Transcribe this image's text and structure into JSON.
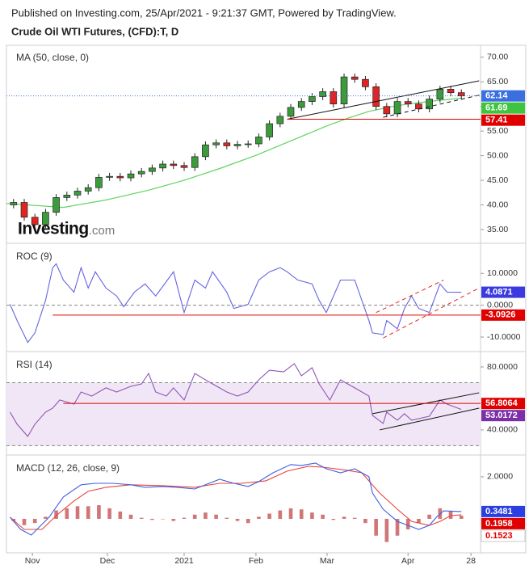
{
  "header": {
    "line1": "Published on Investing.com, 25/Apr/2021 - 9:21:37 GMT, Powered by TradingView.",
    "line2": "Crude Oil WTI Futures, (CFD):T, D"
  },
  "chart_data": [
    {
      "type": "candlestick",
      "title": "MA (50, close, 0)",
      "logo": {
        "text": "Investing",
        "suffix": ".com"
      },
      "xlim": [
        0,
        133.4
      ],
      "x": [
        2,
        5,
        8,
        11,
        14,
        17,
        20,
        23,
        26,
        29,
        32,
        35,
        38,
        41,
        44,
        47,
        50,
        53,
        56,
        59,
        62,
        65,
        68,
        71,
        74,
        77,
        80,
        83,
        86,
        89,
        92,
        95,
        98,
        101,
        104,
        107,
        110,
        113,
        116,
        119,
        122,
        125,
        128
      ],
      "open": [
        40.0,
        40.5,
        37.5,
        36.0,
        38.5,
        41.5,
        42.0,
        42.8,
        43.5,
        45.6,
        45.8,
        45.5,
        46.3,
        46.8,
        47.5,
        48.3,
        48.0,
        47.6,
        49.8,
        52.2,
        52.6,
        52.0,
        52.3,
        52.4,
        53.8,
        56.5,
        58.0,
        59.8,
        61.0,
        62.0,
        63.0,
        60.5,
        66.0,
        65.5,
        64.0,
        60.0,
        58.5,
        61.0,
        60.5,
        59.5,
        61.5,
        63.5,
        62.8
      ],
      "high": [
        41.2,
        41.2,
        38.2,
        39.2,
        42.2,
        42.7,
        43.5,
        44.2,
        46.3,
        46.5,
        46.5,
        47.0,
        47.5,
        48.2,
        49.0,
        49.0,
        48.7,
        50.5,
        52.9,
        53.3,
        53.3,
        53.0,
        53.1,
        54.5,
        57.2,
        58.7,
        60.5,
        61.7,
        62.7,
        63.7,
        63.7,
        66.7,
        66.7,
        66.2,
        64.7,
        60.7,
        61.7,
        61.7,
        61.2,
        62.2,
        64.2,
        64.2,
        63.5
      ],
      "low": [
        39.3,
        36.8,
        35.3,
        35.3,
        37.8,
        40.8,
        41.3,
        42.1,
        42.8,
        44.9,
        44.8,
        44.8,
        45.6,
        46.1,
        46.8,
        47.3,
        46.9,
        46.9,
        49.1,
        51.5,
        51.3,
        51.3,
        51.6,
        51.7,
        53.1,
        55.8,
        57.3,
        59.1,
        60.3,
        61.3,
        59.8,
        59.8,
        64.8,
        63.3,
        59.3,
        57.8,
        57.8,
        59.8,
        58.8,
        58.8,
        60.8,
        62.1,
        61.44
      ],
      "close": [
        40.5,
        37.5,
        36.0,
        38.5,
        41.5,
        42.0,
        42.8,
        43.5,
        45.6,
        45.8,
        45.5,
        46.3,
        46.8,
        47.5,
        48.3,
        48.0,
        47.6,
        49.8,
        52.2,
        52.6,
        52.0,
        52.3,
        52.4,
        53.8,
        56.5,
        58.0,
        59.8,
        61.0,
        62.0,
        63.0,
        60.5,
        66.0,
        65.5,
        64.0,
        60.0,
        58.5,
        61.0,
        60.5,
        59.5,
        61.5,
        63.5,
        62.8,
        62.14
      ],
      "up_color": "#3c9c3c",
      "down_color": "#e02424",
      "ma": {
        "color": "#5fd35f",
        "x": [
          0,
          16,
          28,
          40,
          50,
          60,
          70,
          80,
          90,
          96,
          102,
          108,
          113,
          120,
          128
        ],
        "values": [
          40.3,
          39.5,
          41.0,
          43.0,
          45.0,
          47.4,
          50.0,
          53.0,
          56.0,
          57.6,
          59.0,
          59.9,
          60.5,
          61.1,
          61.69
        ]
      },
      "ylim": [
        32.7,
        72.1
      ],
      "yticks": [
        {
          "value": 35,
          "label": "35.00"
        },
        {
          "value": 40,
          "label": "40.00"
        },
        {
          "value": 45,
          "label": "45.00"
        },
        {
          "value": 50,
          "label": "50.00"
        },
        {
          "value": 55,
          "label": "55.00"
        },
        {
          "value": 60,
          "label": "60.00"
        },
        {
          "value": 65,
          "label": "65.00"
        },
        {
          "value": 70,
          "label": "70.00"
        }
      ],
      "price_labels": [
        {
          "value": 62.14,
          "color": "#3a6fe0",
          "line": "dotted",
          "from": 0
        },
        {
          "value": 61.69,
          "color": "#3ec43e"
        },
        {
          "value": 57.41,
          "color": "#e00000",
          "line": "solid",
          "from": 79
        }
      ],
      "trendlines": [
        {
          "x": [
            79,
            133
          ],
          "y": [
            57.4,
            65.2
          ],
          "style": "solid",
          "color": "#111"
        },
        {
          "x": [
            106,
            133
          ],
          "y": [
            57.8,
            62.3
          ],
          "style": "dashed",
          "color": "#111"
        }
      ]
    },
    {
      "type": "line",
      "title": "ROC (9)",
      "xlim": [
        0,
        133.4
      ],
      "color": "#6464e0",
      "x": [
        1,
        3,
        6,
        8,
        11,
        13,
        14,
        16,
        19,
        21,
        23,
        25,
        28,
        31,
        33,
        36,
        39,
        42,
        47,
        50,
        53,
        56,
        58,
        62,
        64,
        68,
        71,
        74,
        77,
        79,
        82,
        86,
        88,
        90,
        94,
        98,
        102,
        103,
        106,
        107,
        110,
        112,
        114,
        116,
        119,
        122,
        124,
        128
      ],
      "values": [
        0.3,
        -4.8,
        -11.7,
        -8.7,
        1.5,
        11.8,
        13,
        7.9,
        4.1,
        11.8,
        5.4,
        10.5,
        5.4,
        2.9,
        -0.5,
        4.1,
        6.7,
        2.9,
        10.5,
        -2.3,
        7.9,
        5.4,
        10.5,
        4.1,
        -1,
        0.3,
        7.9,
        10.5,
        11.8,
        10.5,
        7.9,
        6.7,
        1.5,
        -2.3,
        7.9,
        7.9,
        -4.8,
        -8.7,
        -9.2,
        -4.8,
        -7.4,
        -1,
        2.9,
        -1,
        -2.3,
        6.7,
        4.1,
        4.0871
      ],
      "ylim": [
        -13.8,
        18.7
      ],
      "yticks": [
        {
          "value": 10,
          "label": "10.0000"
        },
        {
          "value": 0,
          "label": "0.0000"
        },
        {
          "value": -10,
          "label": "-10.0000"
        }
      ],
      "dashed_levels": [
        0
      ],
      "price_labels": [
        {
          "value": 4.0871,
          "color": "#3a3ae0"
        },
        {
          "value": -3.0926,
          "color": "#e00000",
          "line": "solid",
          "from": 13
        }
      ],
      "trendlines": [
        {
          "x": [
            106,
            133
          ],
          "y": [
            -10.3,
            5.4
          ],
          "style": "dashed",
          "color": "#e02424"
        },
        {
          "x": [
            104,
            123
          ],
          "y": [
            -2.3,
            7.9
          ],
          "style": "dashed",
          "color": "#e02424"
        }
      ]
    },
    {
      "type": "line",
      "title": "RSI (14)",
      "xlim": [
        0,
        133.4
      ],
      "color": "#8e55b8",
      "x": [
        1,
        3,
        6,
        8,
        11,
        13,
        15,
        19,
        21,
        24,
        28,
        31,
        35,
        38,
        40,
        42,
        45,
        47,
        50,
        53,
        56,
        58,
        62,
        65,
        68,
        71,
        74,
        78,
        81,
        83,
        86,
        88,
        91,
        94,
        98,
        102,
        103,
        106,
        107,
        110,
        112,
        114,
        119,
        122,
        124,
        128
      ],
      "values": [
        51.3,
        43.6,
        35.9,
        43.6,
        51.3,
        53.8,
        59,
        56.4,
        64.1,
        61.5,
        66.7,
        64.1,
        67.7,
        69.2,
        75.9,
        64.1,
        61.5,
        66.7,
        59,
        75.9,
        71.8,
        69.2,
        64.1,
        61.5,
        64.1,
        71.8,
        77.9,
        76.9,
        82.1,
        74.4,
        79.5,
        69.2,
        59,
        71.8,
        66.7,
        61.5,
        49.2,
        44.1,
        51.3,
        46.2,
        50.3,
        46.2,
        48.7,
        59,
        56.4,
        53.0172
      ],
      "ylim": [
        25.6,
        88.2
      ],
      "yticks": [
        {
          "value": 80,
          "label": "80.0000"
        },
        {
          "value": 40,
          "label": "40.0000"
        }
      ],
      "band": [
        30,
        70
      ],
      "band_color": "#f1e6f5",
      "dashed_levels": [
        70,
        30
      ],
      "price_labels": [
        {
          "value": 56.8064,
          "color": "#e00000",
          "line": "solid",
          "from": 16
        },
        {
          "value": 53.0172,
          "color": "#7b2fa8"
        }
      ],
      "trendlines": [
        {
          "x": [
            105,
            133
          ],
          "y": [
            40.0,
            53.8
          ],
          "style": "solid",
          "color": "#111"
        },
        {
          "x": [
            103,
            133
          ],
          "y": [
            50.3,
            63.6
          ],
          "style": "solid",
          "color": "#111"
        }
      ]
    },
    {
      "type": "macd",
      "title": "MACD (12, 26, close, 9)",
      "xlim": [
        0,
        133.4
      ],
      "xticks": [
        {
          "value": 7.3,
          "label": "Nov"
        },
        {
          "value": 28.4,
          "label": "Dec"
        },
        {
          "value": 50,
          "label": "2021"
        },
        {
          "value": 70.2,
          "label": "Feb"
        },
        {
          "value": 90.2,
          "label": "Mar"
        },
        {
          "value": 113,
          "label": "Apr"
        },
        {
          "value": 130.7,
          "label": "28"
        }
      ],
      "macd_line": {
        "color": "#3f5fe0",
        "x": [
          1,
          4,
          7,
          12,
          16,
          21,
          25,
          30,
          35,
          39,
          44,
          48,
          53,
          56,
          60,
          64,
          68,
          71,
          75,
          80,
          83,
          87,
          90,
          94,
          98,
          102,
          103,
          106,
          110,
          113,
          116,
          119,
          121,
          123,
          128
        ],
        "values": [
          0.08,
          -0.5,
          -0.77,
          0.08,
          1.04,
          1.62,
          1.69,
          1.69,
          1.62,
          1.5,
          1.54,
          1.5,
          1.42,
          1.62,
          1.88,
          1.69,
          1.54,
          1.77,
          2.19,
          2.58,
          2.54,
          2.65,
          2.38,
          2.19,
          2.38,
          2.0,
          1.23,
          0.46,
          -0.12,
          -0.31,
          -0.5,
          -0.31,
          0.08,
          0.38,
          0.3481
        ]
      },
      "signal_line": {
        "color": "#e8453c",
        "x": [
          1,
          5,
          10,
          14,
          19,
          23,
          28,
          35,
          44,
          53,
          60,
          66,
          73,
          79,
          85,
          89,
          96,
          100,
          105,
          110,
          114,
          119,
          122,
          125,
          128
        ],
        "values": [
          0.08,
          -0.5,
          -0.5,
          0.15,
          0.85,
          1.31,
          1.5,
          1.62,
          1.58,
          1.5,
          1.69,
          1.69,
          1.81,
          2.27,
          2.5,
          2.46,
          2.31,
          2.19,
          1.23,
          0.46,
          -0.12,
          -0.31,
          -0.12,
          0.15,
          0.1958
        ]
      },
      "histogram": {
        "color": "#c04848",
        "x": [
          2,
          5,
          8,
          11,
          14,
          17,
          20,
          23,
          26,
          29,
          32,
          35,
          38,
          41,
          44,
          47,
          50,
          53,
          56,
          59,
          62,
          65,
          68,
          71,
          74,
          77,
          80,
          83,
          86,
          89,
          92,
          95,
          98,
          101,
          104,
          107,
          110,
          113,
          116,
          119,
          122,
          125,
          128
        ],
        "values": [
          -0.1,
          -0.3,
          -0.2,
          0.1,
          0.4,
          0.5,
          0.6,
          0.6,
          0.65,
          0.5,
          0.35,
          0.2,
          0.05,
          -0.05,
          0.0,
          -0.1,
          0.05,
          0.2,
          0.3,
          0.2,
          0.05,
          -0.1,
          -0.2,
          0.1,
          0.25,
          0.4,
          0.5,
          0.45,
          0.3,
          0.2,
          -0.05,
          0.1,
          0.05,
          -0.2,
          -0.8,
          -1.1,
          -0.8,
          -0.5,
          -0.2,
          0.2,
          0.5,
          0.35,
          0.1523
        ]
      },
      "ylim": [
        -1.54,
        2.92
      ],
      "yticks": [
        {
          "value": 2,
          "label": "2.0000"
        }
      ],
      "price_labels": [
        {
          "value": 0.3481,
          "color": "#2b3fe0"
        },
        {
          "value": 0.1958,
          "color": "#e00000"
        },
        {
          "value": 0.1523,
          "color": "#ffffff",
          "text_color": "#e00000"
        }
      ]
    }
  ]
}
